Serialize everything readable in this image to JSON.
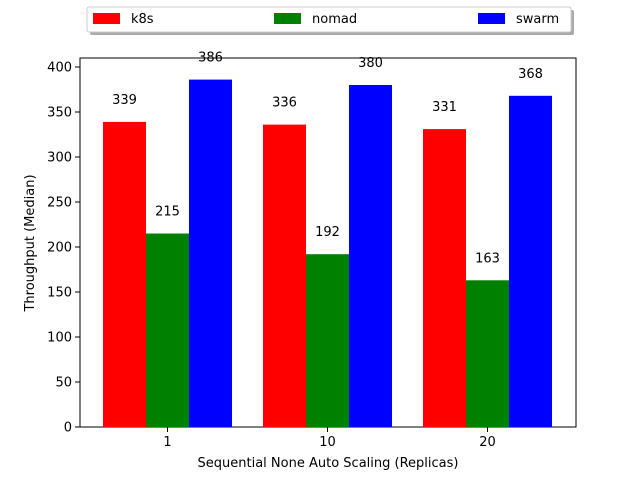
{
  "chart_data": {
    "type": "bar",
    "title": "",
    "xlabel": "Sequential None Auto Scaling (Replicas)",
    "ylabel": "Throughput (Median)",
    "categories": [
      "1",
      "10",
      "20"
    ],
    "ylim": [
      0,
      410
    ],
    "yticks": [
      0,
      50,
      100,
      150,
      200,
      250,
      300,
      350,
      400
    ],
    "grid": false,
    "legend_position": "top-center",
    "series": [
      {
        "name": "k8s",
        "color": "#ff0000",
        "values": [
          339,
          336,
          331
        ]
      },
      {
        "name": "nomad",
        "color": "#008000",
        "values": [
          215,
          192,
          163
        ]
      },
      {
        "name": "swarm",
        "color": "#0000ff",
        "values": [
          386,
          380,
          368
        ]
      }
    ]
  }
}
